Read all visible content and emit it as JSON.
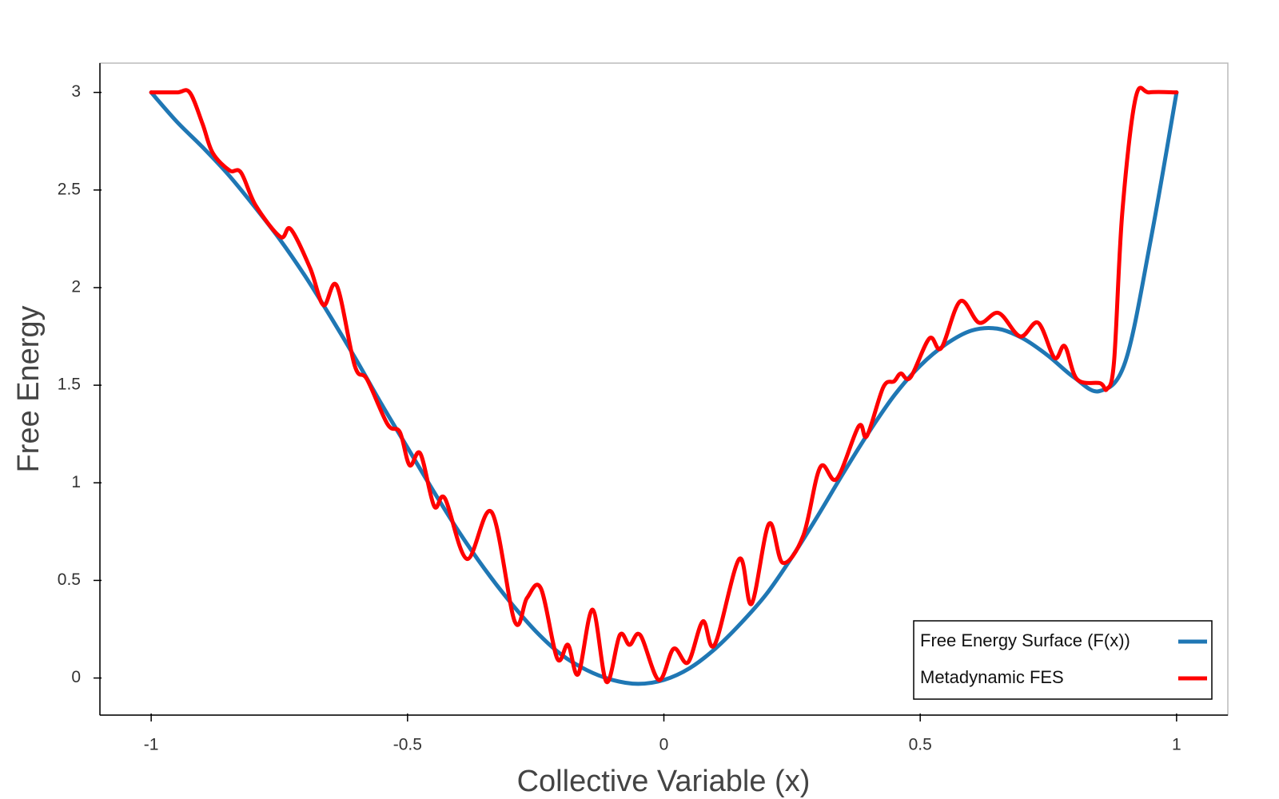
{
  "chart_data": {
    "type": "line",
    "xlabel": "Collective Variable (x)",
    "ylabel": "Free Energy",
    "xlim": [
      -1.1,
      1.1
    ],
    "ylim": [
      -0.19,
      3.15
    ],
    "xticks": [
      -1,
      -0.5,
      0,
      0.5,
      1
    ],
    "yticks": [
      0,
      0.5,
      1,
      1.5,
      2,
      2.5,
      3
    ],
    "legend": "lower right",
    "grid": false,
    "series": [
      {
        "name": "Free Energy Surface (F(x))",
        "color": "#1f77b4",
        "x": [
          -1,
          -0.95,
          -0.9,
          -0.85,
          -0.8,
          -0.75,
          -0.7,
          -0.65,
          -0.6,
          -0.55,
          -0.5,
          -0.45,
          -0.4,
          -0.35,
          -0.3,
          -0.25,
          -0.2,
          -0.15,
          -0.1,
          -0.05,
          0,
          0.05,
          0.1,
          0.15,
          0.2,
          0.25,
          0.3,
          0.35,
          0.4,
          0.45,
          0.5,
          0.55,
          0.6,
          0.65,
          0.7,
          0.75,
          0.8,
          0.85,
          0.9,
          0.95,
          1
        ],
        "values": [
          3.0,
          2.85,
          2.72,
          2.58,
          2.42,
          2.25,
          2.06,
          1.85,
          1.63,
          1.4,
          1.18,
          0.96,
          0.75,
          0.56,
          0.39,
          0.24,
          0.12,
          0.04,
          -0.01,
          -0.03,
          -0.01,
          0.05,
          0.15,
          0.28,
          0.43,
          0.62,
          0.83,
          1.05,
          1.26,
          1.45,
          1.6,
          1.71,
          1.78,
          1.79,
          1.74,
          1.65,
          1.54,
          1.47,
          1.62,
          2.25,
          3.0
        ]
      },
      {
        "name": "Metadynamic FES",
        "color": "#ff0000",
        "x": [
          -1,
          -0.95,
          -0.925,
          -0.9,
          -0.88,
          -0.847,
          -0.825,
          -0.796,
          -0.748,
          -0.728,
          -0.69,
          -0.664,
          -0.638,
          -0.603,
          -0.579,
          -0.539,
          -0.515,
          -0.496,
          -0.475,
          -0.448,
          -0.427,
          -0.384,
          -0.336,
          -0.291,
          -0.267,
          -0.24,
          -0.208,
          -0.187,
          -0.167,
          -0.139,
          -0.112,
          -0.086,
          -0.067,
          -0.046,
          -0.01,
          0.019,
          0.047,
          0.076,
          0.099,
          0.147,
          0.171,
          0.205,
          0.232,
          0.272,
          0.305,
          0.337,
          0.38,
          0.396,
          0.428,
          0.449,
          0.462,
          0.481,
          0.518,
          0.541,
          0.578,
          0.615,
          0.653,
          0.695,
          0.73,
          0.762,
          0.782,
          0.806,
          0.851,
          0.864,
          0.878,
          0.894,
          0.92,
          0.947,
          1
        ],
        "values": [
          3.0,
          3.0,
          3.0,
          2.84,
          2.69,
          2.6,
          2.59,
          2.42,
          2.26,
          2.3,
          2.1,
          1.91,
          2.01,
          1.6,
          1.53,
          1.3,
          1.26,
          1.09,
          1.15,
          0.88,
          0.92,
          0.61,
          0.85,
          0.29,
          0.41,
          0.46,
          0.1,
          0.17,
          0.02,
          0.35,
          -0.02,
          0.22,
          0.17,
          0.22,
          -0.01,
          0.15,
          0.08,
          0.29,
          0.17,
          0.61,
          0.38,
          0.79,
          0.59,
          0.73,
          1.08,
          1.02,
          1.29,
          1.24,
          1.49,
          1.52,
          1.56,
          1.54,
          1.74,
          1.69,
          1.93,
          1.82,
          1.87,
          1.75,
          1.82,
          1.64,
          1.7,
          1.53,
          1.51,
          1.48,
          1.62,
          2.38,
          2.97,
          3.0,
          3.0
        ]
      }
    ]
  }
}
